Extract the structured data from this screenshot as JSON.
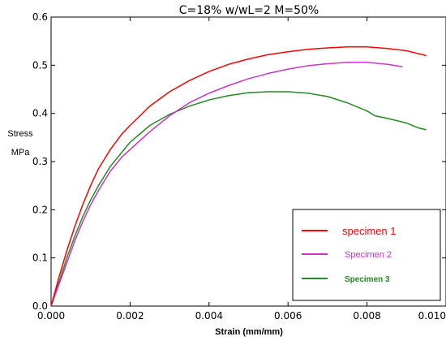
{
  "chart_data": {
    "type": "line",
    "title": "C=18% w/wL=2 M=50%",
    "xlabel": "Strain (mm/mm)",
    "ylabel_line1": "Stress",
    "ylabel_line2": "MPa",
    "xlim": [
      0.0,
      0.01
    ],
    "ylim": [
      0.0,
      0.6
    ],
    "x_ticks": [
      "0.000",
      "0.002",
      "0.004",
      "0.006",
      "0.008",
      "0.010"
    ],
    "y_ticks": [
      "0.0",
      "0.1",
      "0.2",
      "0.3",
      "0.4",
      "0.5",
      "0.6"
    ],
    "grid": false,
    "legend_position": "lower-right",
    "series": [
      {
        "name": "specimen 1",
        "color": "#ff0000",
        "x": [
          0,
          0.0002,
          0.0004,
          0.0006,
          0.0008,
          0.001,
          0.0012,
          0.0015,
          0.0018,
          0.002,
          0.0025,
          0.003,
          0.0035,
          0.004,
          0.0045,
          0.005,
          0.0055,
          0.006,
          0.0065,
          0.007,
          0.0075,
          0.008,
          0.0085,
          0.009,
          0.0095
        ],
        "y": [
          0,
          0.06,
          0.115,
          0.165,
          0.21,
          0.25,
          0.285,
          0.325,
          0.358,
          0.375,
          0.415,
          0.445,
          0.468,
          0.487,
          0.502,
          0.513,
          0.522,
          0.528,
          0.533,
          0.536,
          0.538,
          0.538,
          0.535,
          0.53,
          0.52
        ]
      },
      {
        "name": "Specimen 2",
        "color": "#cc33cc",
        "x": [
          0,
          0.0002,
          0.0004,
          0.0006,
          0.0008,
          0.001,
          0.0012,
          0.0015,
          0.0018,
          0.002,
          0.0025,
          0.003,
          0.0035,
          0.004,
          0.0045,
          0.005,
          0.0055,
          0.006,
          0.0065,
          0.007,
          0.0075,
          0.008,
          0.0085,
          0.0089
        ],
        "y": [
          0,
          0.045,
          0.09,
          0.135,
          0.175,
          0.21,
          0.24,
          0.28,
          0.31,
          0.325,
          0.362,
          0.395,
          0.422,
          0.442,
          0.458,
          0.472,
          0.483,
          0.492,
          0.499,
          0.503,
          0.506,
          0.506,
          0.502,
          0.497
        ]
      },
      {
        "name": "Specimen 3",
        "color": "#228b22",
        "x": [
          0,
          0.0002,
          0.0004,
          0.0006,
          0.0008,
          0.001,
          0.0012,
          0.0015,
          0.0018,
          0.002,
          0.0025,
          0.003,
          0.0035,
          0.004,
          0.0045,
          0.005,
          0.0055,
          0.006,
          0.0065,
          0.007,
          0.0075,
          0.008,
          0.0082,
          0.0085,
          0.009,
          0.0093,
          0.0095
        ],
        "y": [
          0,
          0.05,
          0.1,
          0.145,
          0.185,
          0.22,
          0.25,
          0.29,
          0.32,
          0.34,
          0.375,
          0.398,
          0.415,
          0.428,
          0.437,
          0.443,
          0.445,
          0.445,
          0.442,
          0.435,
          0.422,
          0.405,
          0.395,
          0.39,
          0.38,
          0.37,
          0.366
        ]
      }
    ]
  }
}
